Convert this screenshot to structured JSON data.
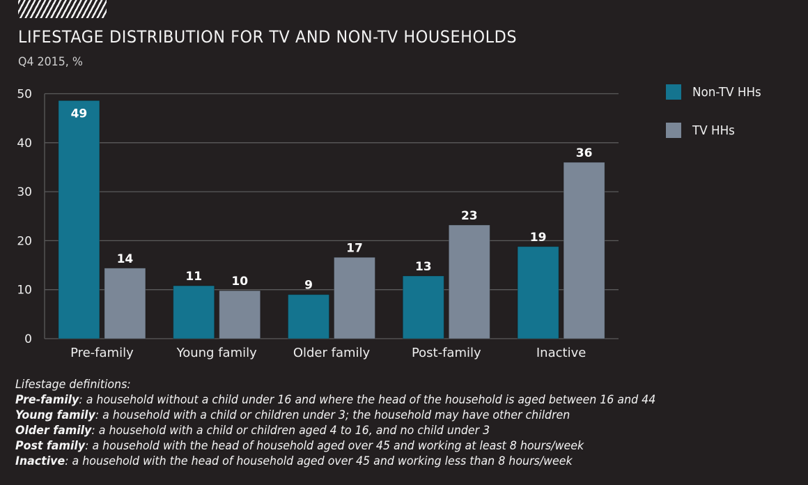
{
  "header": {
    "title": "LIFESTAGE DISTRIBUTION FOR TV AND NON-TV HOUSEHOLDS",
    "subtitle": "Q4 2015, %"
  },
  "colors": {
    "background": "#231f20",
    "non_tv": "#14748f",
    "tv": "#7b8797",
    "grid": "#5b5b5b",
    "axis_text": "#eeeeee"
  },
  "chart_data": {
    "type": "bar",
    "title": "LIFESTAGE DISTRIBUTION FOR TV AND NON-TV HOUSEHOLDS",
    "subtitle": "Q4 2015, %",
    "xlabel": "",
    "ylabel": "",
    "categories": [
      "Pre-family",
      "Young family",
      "Older family",
      "Post-family",
      "Inactive"
    ],
    "series": [
      {
        "name": "Non-TV HHs",
        "values": [
          48.6,
          10.8,
          9.0,
          12.8,
          18.8
        ],
        "labels": [
          "49",
          "11",
          "9",
          "13",
          "19"
        ]
      },
      {
        "name": "TV HHs",
        "values": [
          14.4,
          9.8,
          16.6,
          23.2,
          36.0
        ],
        "labels": [
          "14",
          "10",
          "17",
          "23",
          "36"
        ]
      }
    ],
    "ylim": [
      0,
      50
    ],
    "yticks": [
      "0",
      "10",
      "20",
      "30",
      "40",
      "50"
    ],
    "grid": true,
    "legend_position": "right"
  },
  "legend": [
    {
      "label": "Non-TV HHs"
    },
    {
      "label": "TV HHs"
    }
  ],
  "notes": {
    "heading": "Lifestage definitions:",
    "items": [
      {
        "term": "Pre-family",
        "sep": ":",
        "text": " a household without a child under 16 and where the head of the household is aged between 16 and 44"
      },
      {
        "term": "Young family",
        "sep": ":",
        "text": " a household with a child or children under 3; the household may have other children"
      },
      {
        "term": "Older family",
        "sep": ":",
        "text": " a household with a child or children aged 4 to 16, and no child under 3"
      },
      {
        "term": "Post family",
        "sep": ":",
        "text": " a household with the head of household aged over 45 and working at least 8 hours/week"
      },
      {
        "term": "Inactive",
        "sep": ":",
        "text": " a household with the head of household aged over 45 and working less than 8 hours/week"
      }
    ]
  }
}
